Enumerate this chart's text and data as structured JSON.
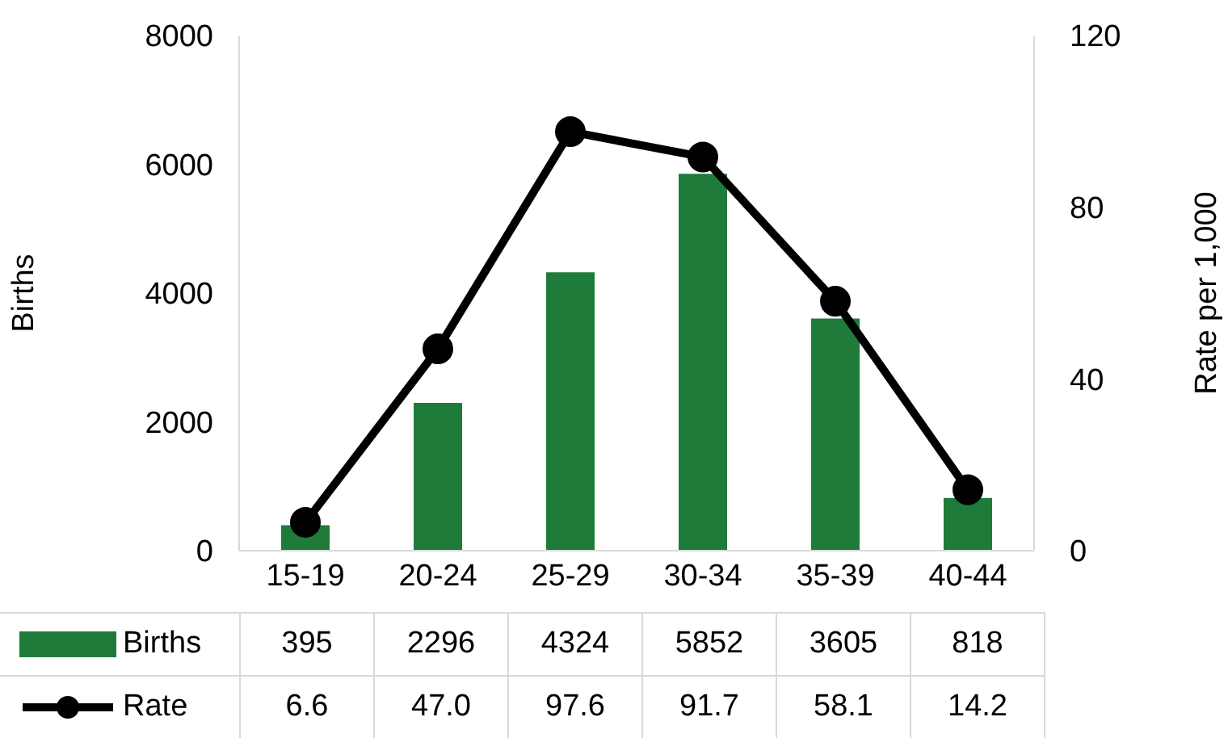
{
  "chart_data": {
    "type": "bar",
    "categories": [
      "15-19",
      "20-24",
      "25-29",
      "30-34",
      "35-39",
      "40-44"
    ],
    "ylabel": "Births",
    "y2label": "Rate per 1,000",
    "ylim": [
      0,
      8000
    ],
    "yticks": [
      0,
      2000,
      4000,
      6000,
      8000
    ],
    "y2lim": [
      0,
      120
    ],
    "y2ticks": [
      0,
      40,
      80,
      120
    ],
    "series": [
      {
        "name": "Births",
        "color": "#1e7b3a",
        "values": [
          395,
          2296,
          4324,
          5852,
          3605,
          818
        ],
        "value_labels": [
          "395",
          "2296",
          "4324",
          "5852",
          "3605",
          "818"
        ]
      },
      {
        "name": "Rate",
        "type": "line",
        "axis": "y2",
        "color": "#000000",
        "marker": "circle",
        "values": [
          6.6,
          47.0,
          97.6,
          91.7,
          58.1,
          14.2
        ],
        "value_labels": [
          "6.6",
          "47.0",
          "97.6",
          "91.7",
          "58.1",
          "14.2"
        ]
      }
    ],
    "legend": "bottom"
  }
}
